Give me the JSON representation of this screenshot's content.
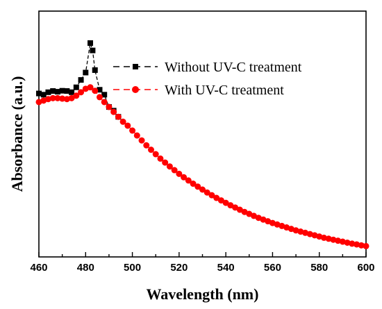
{
  "chart_data": {
    "type": "line",
    "xlabel": "Wavelength (nm)",
    "ylabel": "Absorbance (a.u.)",
    "xlim": [
      460,
      600
    ],
    "ylim": [
      0,
      1
    ],
    "y_ticks_labeled": false,
    "x_ticks": [
      "460",
      "480",
      "500",
      "520",
      "540",
      "560",
      "580",
      "600"
    ],
    "legend_position": "top-right",
    "grid": false,
    "series": [
      {
        "name": "Without UV-C treatment",
        "color": "#000000",
        "marker": "square",
        "line_style": "dashed",
        "x": [
          460,
          462,
          464,
          466,
          468,
          470,
          472,
          474,
          476,
          478,
          480,
          482,
          483,
          484,
          486,
          488,
          490,
          492,
          494
        ],
        "y": [
          0.665,
          0.66,
          0.67,
          0.675,
          0.672,
          0.676,
          0.675,
          0.67,
          0.69,
          0.72,
          0.75,
          0.87,
          0.84,
          0.76,
          0.68,
          0.66,
          0.61,
          0.595,
          0.57
        ]
      },
      {
        "name": "With UV-C treatment",
        "color": "#ff0000",
        "marker": "circle",
        "line_style": "dashed",
        "x": [
          460,
          462,
          464,
          466,
          468,
          470,
          472,
          474,
          476,
          478,
          480,
          482,
          484,
          486,
          488,
          490,
          492,
          494,
          496,
          498,
          500,
          502,
          504,
          506,
          508,
          510,
          512,
          514,
          516,
          518,
          520,
          522,
          524,
          526,
          528,
          530,
          532,
          534,
          536,
          538,
          540,
          542,
          544,
          546,
          548,
          550,
          552,
          554,
          556,
          558,
          560,
          562,
          564,
          566,
          568,
          570,
          572,
          574,
          576,
          578,
          580,
          582,
          584,
          586,
          588,
          590,
          592,
          594,
          596,
          598,
          600
        ],
        "y": [
          0.63,
          0.636,
          0.642,
          0.646,
          0.646,
          0.644,
          0.642,
          0.646,
          0.656,
          0.67,
          0.684,
          0.69,
          0.676,
          0.65,
          0.63,
          0.61,
          0.59,
          0.57,
          0.55,
          0.534,
          0.514,
          0.494,
          0.474,
          0.454,
          0.436,
          0.418,
          0.4,
          0.384,
          0.368,
          0.353,
          0.338,
          0.324,
          0.311,
          0.298,
          0.286,
          0.274,
          0.262,
          0.251,
          0.24,
          0.23,
          0.22,
          0.21,
          0.201,
          0.192,
          0.183,
          0.175,
          0.167,
          0.159,
          0.152,
          0.145,
          0.138,
          0.132,
          0.126,
          0.12,
          0.114,
          0.108,
          0.103,
          0.098,
          0.093,
          0.088,
          0.083,
          0.078,
          0.074,
          0.07,
          0.066,
          0.062,
          0.058,
          0.054,
          0.051,
          0.047,
          0.044
        ]
      }
    ]
  }
}
